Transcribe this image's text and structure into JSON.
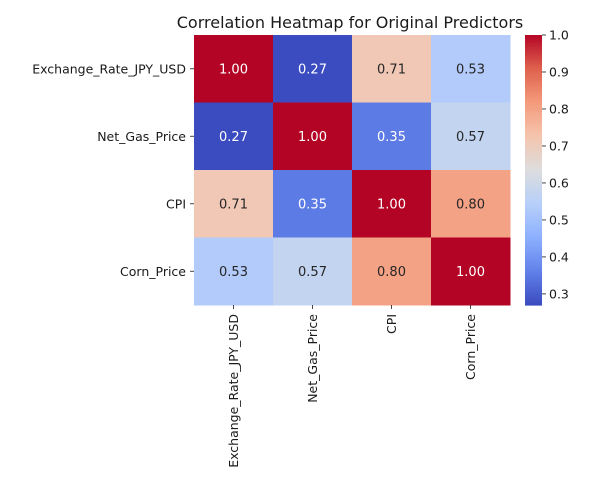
{
  "chart_data": {
    "type": "heatmap",
    "title": "Correlation Heatmap for Original Predictors",
    "row_labels": [
      "Exchange_Rate_JPY_USD",
      "Net_Gas_Price",
      "CPI",
      "Corn_Price"
    ],
    "col_labels": [
      "Exchange_Rate_JPY_USD",
      "Net_Gas_Price",
      "CPI",
      "Corn_Price"
    ],
    "values": [
      [
        1.0,
        0.27,
        0.71,
        0.53
      ],
      [
        0.27,
        1.0,
        0.35,
        0.57
      ],
      [
        0.71,
        0.35,
        1.0,
        0.8
      ],
      [
        0.53,
        0.57,
        0.8,
        1.0
      ]
    ],
    "value_labels": [
      [
        "1.00",
        "0.27",
        "0.71",
        "0.53"
      ],
      [
        "0.27",
        "1.00",
        "0.35",
        "0.57"
      ],
      [
        "0.71",
        "0.35",
        "1.00",
        "0.80"
      ],
      [
        "0.53",
        "0.57",
        "0.80",
        "1.00"
      ]
    ],
    "colormap": "coolwarm",
    "colorbar": {
      "range": [
        0.27,
        1.0
      ],
      "ticks": [
        "0.3",
        "0.4",
        "0.5",
        "0.6",
        "0.7",
        "0.8",
        "0.9",
        "1.0"
      ],
      "tick_values": [
        0.3,
        0.4,
        0.5,
        0.6,
        0.7,
        0.8,
        0.9,
        1.0
      ]
    },
    "colors": {
      "low": "#3b4cc0",
      "mid": "#dddddd",
      "high": "#b40426",
      "text_dark": "#262626",
      "text_light": "#ffffff"
    }
  }
}
